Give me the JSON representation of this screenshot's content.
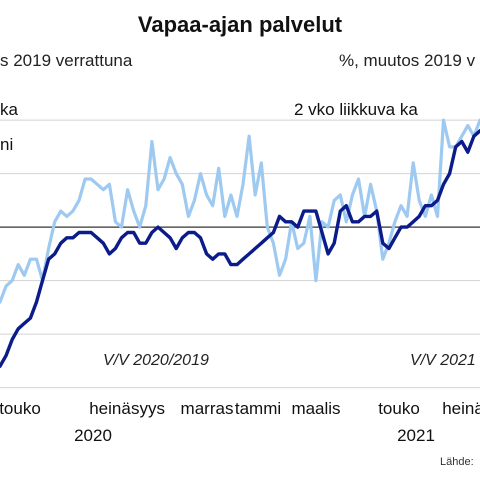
{
  "chart_data": {
    "type": "line",
    "title": "Vapaa-ajan palvelut",
    "subtitle_left": "s 2019 verrattuna",
    "subtitle_right": "%, muutos 2019 v",
    "legend": [
      {
        "label": "ka",
        "color": "#9ec9f0"
      },
      {
        "label": "ni",
        "color": "#0b1b8a"
      }
    ],
    "series_label": "2 vko liikkuva ka",
    "annotations": [
      "V/V 2020/2019",
      "V/V 2021"
    ],
    "x_ticks": [
      "uko",
      "heinä",
      "syys",
      "marras",
      "tammi",
      "maalis",
      "touko",
      "heinä"
    ],
    "x_ticks_raw": [
      "touko",
      "heinä",
      "syys",
      "marras",
      "tammi",
      "maalis",
      "touko",
      "heinä"
    ],
    "year_labels": [
      "2020",
      "2021"
    ],
    "source": "Lähde:",
    "grid": true,
    "zero_line": 0,
    "ylim": [
      -62,
      52
    ],
    "series": [
      {
        "color": "#9ec9f0",
        "values": [
          -28,
          -22,
          -20,
          -14,
          -18,
          -12,
          -12,
          -20,
          -8,
          2,
          6,
          4,
          6,
          10,
          18,
          18,
          16,
          14,
          16,
          2,
          0,
          14,
          6,
          0,
          8,
          32,
          14,
          18,
          26,
          20,
          16,
          4,
          10,
          20,
          12,
          8,
          22,
          4,
          12,
          4,
          16,
          34,
          12,
          24,
          0,
          -6,
          -18,
          -12,
          2,
          -8,
          -6,
          4,
          -20,
          2,
          0,
          10,
          12,
          2,
          12,
          18,
          4,
          16,
          6,
          -12,
          -6,
          2,
          8,
          4,
          24,
          10,
          4,
          12,
          4,
          40,
          30,
          30,
          34,
          38,
          34,
          40
        ]
      },
      {
        "color": "#0b1b8a",
        "values": [
          -52,
          -48,
          -42,
          -38,
          -36,
          -34,
          -28,
          -20,
          -12,
          -10,
          -6,
          -4,
          -4,
          -2,
          -2,
          -2,
          -4,
          -6,
          -10,
          -8,
          -4,
          -2,
          -2,
          -6,
          -6,
          -2,
          0,
          -2,
          -4,
          -8,
          -4,
          -2,
          -2,
          -4,
          -10,
          -12,
          -10,
          -10,
          -14,
          -14,
          -12,
          -10,
          -8,
          -6,
          -4,
          -2,
          4,
          2,
          2,
          0,
          6,
          6,
          6,
          -2,
          -10,
          -6,
          6,
          8,
          2,
          2,
          4,
          4,
          6,
          -6,
          -8,
          -4,
          0,
          0,
          2,
          4,
          8,
          8,
          10,
          16,
          20,
          30,
          32,
          28,
          34,
          36
        ]
      }
    ]
  }
}
